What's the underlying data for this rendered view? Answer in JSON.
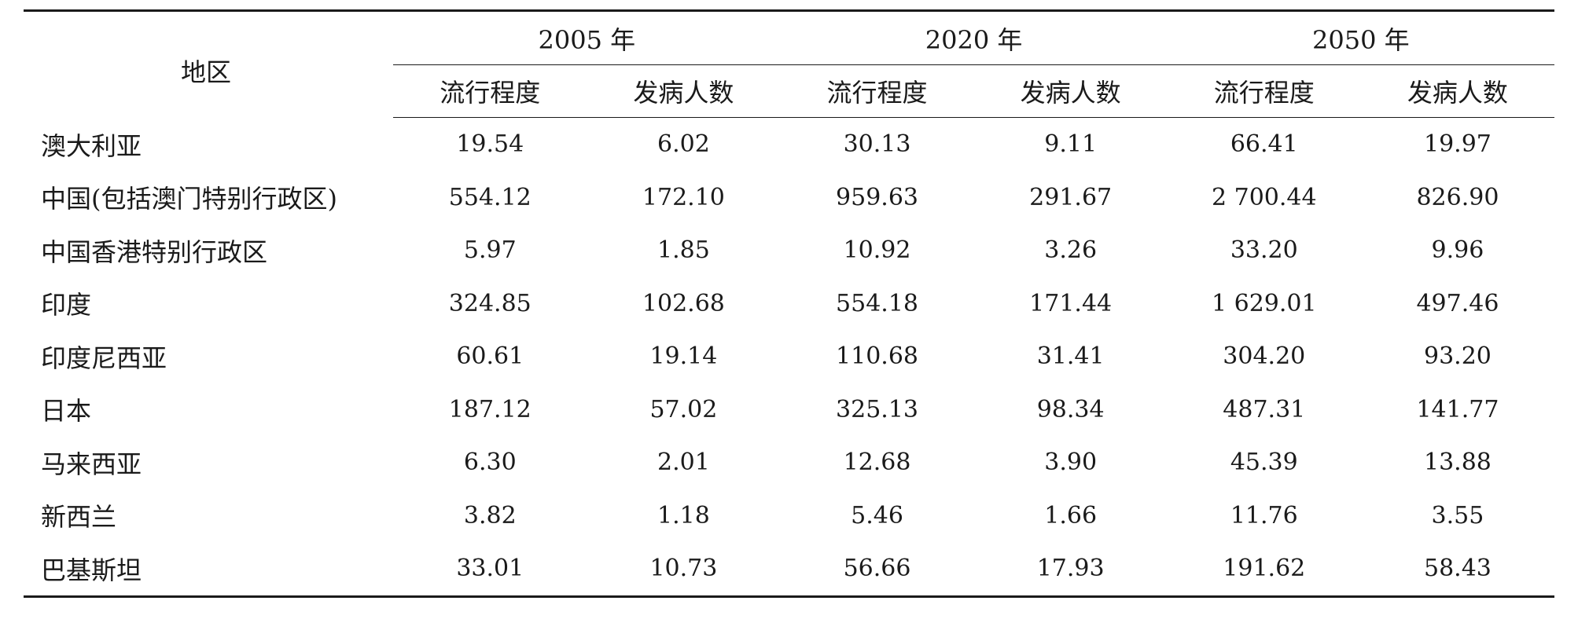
{
  "table": {
    "header": {
      "region": "地区",
      "years": [
        "2005 年",
        "2020 年",
        "2050 年"
      ],
      "subheaders": [
        "流行程度",
        "发病人数",
        "流行程度",
        "发病人数",
        "流行程度",
        "发病人数"
      ]
    },
    "rows": [
      {
        "region": "澳大利亚",
        "values": [
          "19.54",
          "6.02",
          "30.13",
          "9.11",
          "66.41",
          "19.97"
        ]
      },
      {
        "region": "中国(包括澳门特别行政区)",
        "values": [
          "554.12",
          "172.10",
          "959.63",
          "291.67",
          "2 700.44",
          "826.90"
        ]
      },
      {
        "region": "中国香港特别行政区",
        "values": [
          "5.97",
          "1.85",
          "10.92",
          "3.26",
          "33.20",
          "9.96"
        ]
      },
      {
        "region": "印度",
        "values": [
          "324.85",
          "102.68",
          "554.18",
          "171.44",
          "1 629.01",
          "497.46"
        ]
      },
      {
        "region": "印度尼西亚",
        "values": [
          "60.61",
          "19.14",
          "110.68",
          "31.41",
          "304.20",
          "93.20"
        ]
      },
      {
        "region": "日本",
        "values": [
          "187.12",
          "57.02",
          "325.13",
          "98.34",
          "487.31",
          "141.77"
        ]
      },
      {
        "region": "马来西亚",
        "values": [
          "6.30",
          "2.01",
          "12.68",
          "3.90",
          "45.39",
          "13.88"
        ]
      },
      {
        "region": "新西兰",
        "values": [
          "3.82",
          "1.18",
          "5.46",
          "1.66",
          "11.76",
          "3.55"
        ]
      },
      {
        "region": "巴基斯坦",
        "values": [
          "33.01",
          "10.73",
          "56.66",
          "17.93",
          "191.62",
          "58.43"
        ]
      }
    ]
  }
}
